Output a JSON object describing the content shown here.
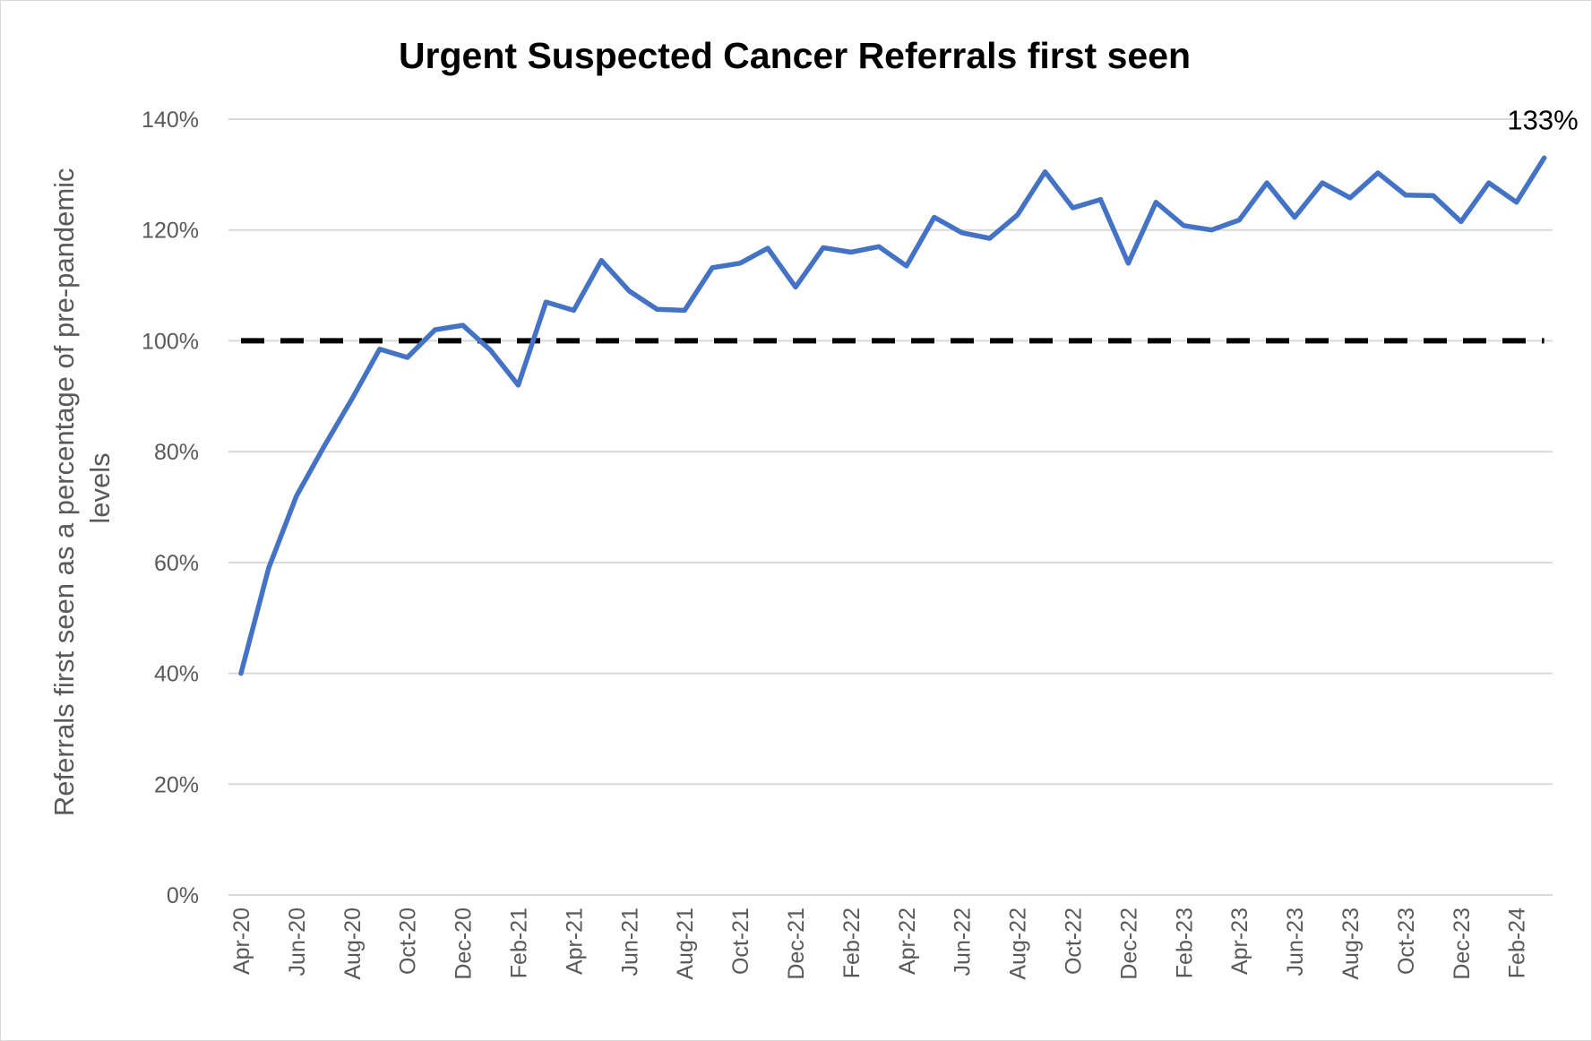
{
  "chart_data": {
    "type": "line",
    "title": "Urgent Suspected Cancer Referrals first seen",
    "xlabel": "",
    "ylabel_lines": [
      "Referrals first seen as a percentage of pre-pandemic",
      "levels"
    ],
    "ylim": [
      0,
      140
    ],
    "yticks": [
      0,
      20,
      40,
      60,
      80,
      100,
      120,
      140
    ],
    "ytick_labels": [
      "0%",
      "20%",
      "40%",
      "60%",
      "80%",
      "100%",
      "120%",
      "140%"
    ],
    "x": [
      "Apr-20",
      "May-20",
      "Jun-20",
      "Jul-20",
      "Aug-20",
      "Sep-20",
      "Oct-20",
      "Nov-20",
      "Dec-20",
      "Jan-21",
      "Feb-21",
      "Mar-21",
      "Apr-21",
      "May-21",
      "Jun-21",
      "Jul-21",
      "Aug-21",
      "Sep-21",
      "Oct-21",
      "Nov-21",
      "Dec-21",
      "Jan-22",
      "Feb-22",
      "Mar-22",
      "Apr-22",
      "May-22",
      "Jun-22",
      "Jul-22",
      "Aug-22",
      "Sep-22",
      "Oct-22",
      "Nov-22",
      "Dec-22",
      "Jan-23",
      "Feb-23",
      "Mar-23",
      "Apr-23",
      "May-23",
      "Jun-23",
      "Jul-23",
      "Aug-23",
      "Sep-23",
      "Oct-23",
      "Nov-23",
      "Dec-23",
      "Jan-24",
      "Feb-24",
      "Mar-24"
    ],
    "x_tick_labels": [
      "Apr-20",
      "Jun-20",
      "Aug-20",
      "Oct-20",
      "Dec-20",
      "Feb-21",
      "Apr-21",
      "Jun-21",
      "Aug-21",
      "Oct-21",
      "Dec-21",
      "Feb-22",
      "Apr-22",
      "Jun-22",
      "Aug-22",
      "Oct-22",
      "Dec-22",
      "Feb-23",
      "Apr-23",
      "Jun-23",
      "Aug-23",
      "Oct-23",
      "Dec-23",
      "Feb-24"
    ],
    "series": [
      {
        "color": "#4472c4",
        "values": [
          40,
          59,
          72,
          81,
          89.5,
          98.5,
          97,
          102,
          102.8,
          98.3,
          92,
          107,
          105.5,
          114.5,
          109,
          105.7,
          105.5,
          113.2,
          114,
          116.7,
          109.7,
          116.8,
          116,
          117,
          113.5,
          122.3,
          119.5,
          118.5,
          122.7,
          130.5,
          124,
          125.5,
          114,
          125,
          120.8,
          120,
          121.8,
          128.5,
          122.3,
          128.5,
          125.8,
          130.3,
          126.3,
          126.2,
          121.5,
          128.5,
          125,
          133
        ]
      },
      {
        "color": "#000000",
        "style": "dashed",
        "values": [
          100,
          100,
          100,
          100,
          100,
          100,
          100,
          100,
          100,
          100,
          100,
          100,
          100,
          100,
          100,
          100,
          100,
          100,
          100,
          100,
          100,
          100,
          100,
          100,
          100,
          100,
          100,
          100,
          100,
          100,
          100,
          100,
          100,
          100,
          100,
          100,
          100,
          100,
          100,
          100,
          100,
          100,
          100,
          100,
          100,
          100,
          100,
          100
        ]
      }
    ],
    "annotations": [
      {
        "text": "133%",
        "x": "Mar-24",
        "y": 133
      }
    ],
    "grid": true,
    "legend": "none"
  }
}
